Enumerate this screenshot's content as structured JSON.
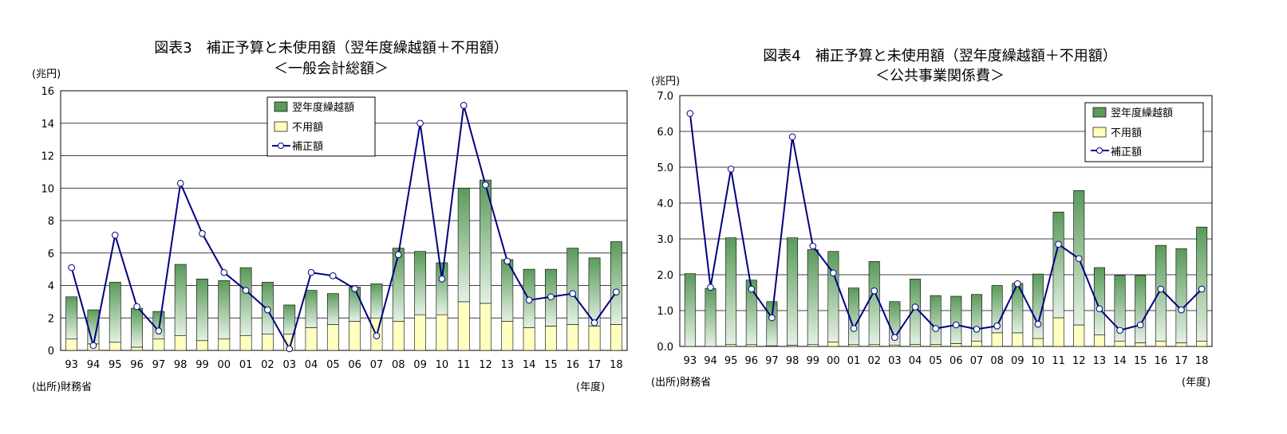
{
  "colors": {
    "carryover": "#5a9a5a",
    "carryover_light": "#e4f1e4",
    "unused": "#ffffc0",
    "line": "#000080",
    "grid": "#000000"
  },
  "chart_data": [
    {
      "type": "bar",
      "title": "図表3　補正予算と未使用額（翌年度繰越額＋不用額）",
      "subtitle": "＜一般会計総額＞",
      "ylabel": "(兆円)",
      "xlabel": "(年度)",
      "source": "(出所)財務省",
      "ylim": [
        0,
        16
      ],
      "yticks": [
        "0",
        "2",
        "4",
        "6",
        "8",
        "10",
        "12",
        "14",
        "16"
      ],
      "categories": [
        "93",
        "94",
        "95",
        "96",
        "97",
        "98",
        "99",
        "00",
        "01",
        "02",
        "03",
        "04",
        "05",
        "06",
        "07",
        "08",
        "09",
        "10",
        "11",
        "12",
        "13",
        "14",
        "15",
        "16",
        "17",
        "18"
      ],
      "stacked": true,
      "legend_position": "top-center",
      "series": [
        {
          "name": "不用額",
          "type": "bar",
          "values": [
            0.7,
            0.4,
            0.5,
            0.2,
            0.7,
            0.9,
            0.6,
            0.7,
            0.9,
            1.0,
            1.0,
            1.4,
            1.6,
            1.8,
            2.0,
            1.8,
            2.2,
            2.2,
            3.0,
            2.9,
            1.8,
            1.4,
            1.5,
            1.6,
            1.5,
            1.6
          ]
        },
        {
          "name": "翌年度繰越額",
          "type": "bar",
          "values": [
            2.6,
            2.1,
            3.7,
            2.4,
            1.7,
            4.4,
            3.8,
            3.6,
            4.2,
            3.2,
            1.8,
            2.3,
            1.9,
            2.1,
            2.1,
            4.5,
            3.9,
            3.2,
            7.0,
            7.6,
            3.8,
            3.6,
            3.5,
            4.7,
            4.2,
            5.1
          ]
        },
        {
          "name": "補正額",
          "type": "line",
          "values": [
            5.1,
            0.3,
            7.1,
            2.7,
            1.2,
            10.3,
            7.2,
            4.8,
            3.7,
            2.5,
            0.1,
            4.8,
            4.6,
            3.8,
            0.9,
            5.9,
            14.0,
            4.4,
            15.1,
            10.2,
            5.5,
            3.1,
            3.3,
            3.5,
            1.7,
            3.6
          ]
        }
      ]
    },
    {
      "type": "bar",
      "title": "図表4　補正予算と未使用額（翌年度繰越額＋不用額）",
      "subtitle": "＜公共事業関係費＞",
      "ylabel": "(兆円)",
      "xlabel": "(年度)",
      "source": "(出所)財務省",
      "ylim": [
        0,
        7
      ],
      "yticks": [
        "0.0",
        "1.0",
        "2.0",
        "3.0",
        "4.0",
        "5.0",
        "6.0",
        "7.0"
      ],
      "categories": [
        "93",
        "94",
        "95",
        "96",
        "97",
        "98",
        "99",
        "00",
        "01",
        "02",
        "03",
        "04",
        "05",
        "06",
        "07",
        "08",
        "09",
        "10",
        "11",
        "12",
        "13",
        "14",
        "15",
        "16",
        "17",
        "18"
      ],
      "stacked": true,
      "legend_position": "top-right",
      "series": [
        {
          "name": "不用額",
          "type": "bar",
          "values": [
            0.0,
            0.0,
            0.05,
            0.05,
            0.02,
            0.03,
            0.05,
            0.12,
            0.05,
            0.05,
            0.04,
            0.06,
            0.06,
            0.08,
            0.15,
            0.38,
            0.38,
            0.22,
            0.8,
            0.6,
            0.32,
            0.15,
            0.1,
            0.15,
            0.1,
            0.15
          ]
        },
        {
          "name": "翌年度繰越額",
          "type": "bar",
          "values": [
            2.03,
            1.62,
            2.98,
            1.8,
            1.23,
            3.0,
            2.65,
            2.53,
            1.58,
            2.32,
            1.21,
            1.82,
            1.36,
            1.32,
            1.3,
            1.32,
            1.38,
            1.8,
            2.95,
            3.75,
            1.88,
            1.83,
            1.88,
            2.67,
            2.63,
            3.18
          ]
        },
        {
          "name": "補正額",
          "type": "line",
          "values": [
            6.5,
            1.65,
            4.95,
            1.6,
            0.8,
            5.85,
            2.8,
            2.05,
            0.5,
            1.55,
            0.25,
            1.1,
            0.5,
            0.6,
            0.48,
            0.57,
            1.75,
            0.62,
            2.85,
            2.45,
            1.05,
            0.45,
            0.6,
            1.6,
            1.02,
            1.6
          ]
        }
      ]
    }
  ]
}
